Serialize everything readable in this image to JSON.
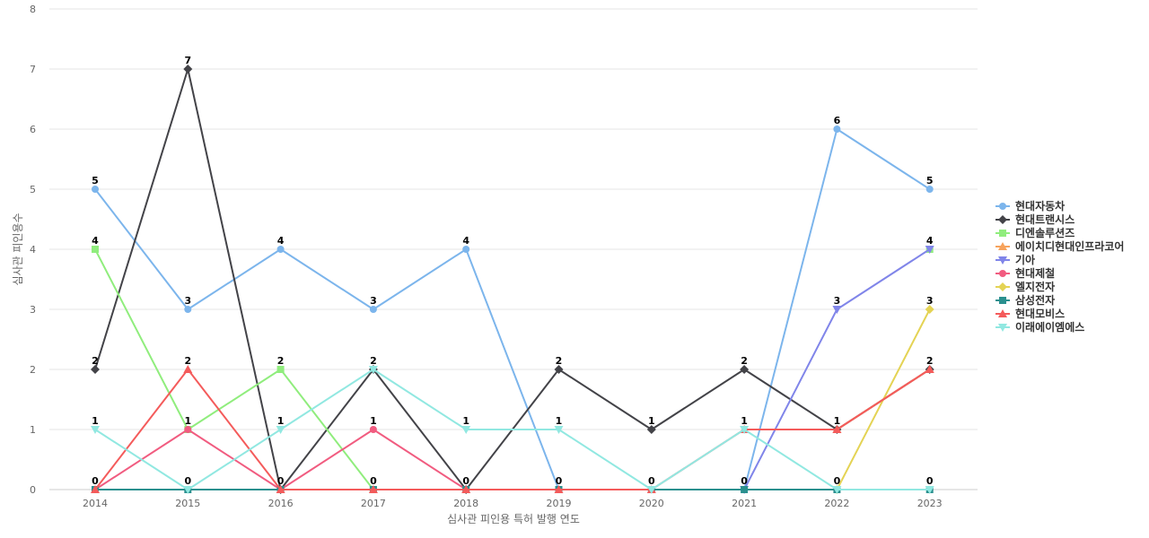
{
  "chart_data": {
    "type": "line",
    "title": "",
    "xlabel": "심사관 피인용 특허 발행 연도",
    "ylabel": "심사관 피인용수",
    "ylim": [
      0,
      8
    ],
    "yticks": [
      0,
      1,
      2,
      3,
      4,
      5,
      6,
      7,
      8
    ],
    "grid": true,
    "legend_position": "right",
    "categories": [
      "2014",
      "2015",
      "2016",
      "2017",
      "2018",
      "2019",
      "2020",
      "2021",
      "2022",
      "2023"
    ],
    "series": [
      {
        "name": "현대자동차",
        "color": "#7cb5ec",
        "marker": "circle",
        "values": [
          5,
          3,
          4,
          3,
          4,
          0,
          null,
          0,
          6,
          5
        ]
      },
      {
        "name": "현대트랜시스",
        "color": "#434348",
        "marker": "diamond",
        "values": [
          2,
          7,
          0,
          2,
          0,
          2,
          1,
          2,
          1,
          2
        ]
      },
      {
        "name": "디엔솔루션즈",
        "color": "#90ed7d",
        "marker": "square",
        "values": [
          4,
          1,
          2,
          0,
          null,
          null,
          null,
          null,
          null,
          4
        ]
      },
      {
        "name": "에이치디현대인프라코어",
        "color": "#f7a35c",
        "marker": "triangle",
        "values": [
          null,
          null,
          null,
          null,
          null,
          null,
          null,
          1,
          1,
          2
        ]
      },
      {
        "name": "기아",
        "color": "#8085e9",
        "marker": "triangle-down",
        "values": [
          null,
          null,
          null,
          null,
          null,
          null,
          null,
          0,
          3,
          4
        ]
      },
      {
        "name": "현대제철",
        "color": "#f15c80",
        "marker": "circle",
        "values": [
          0,
          1,
          0,
          1,
          0,
          0,
          0,
          null,
          null,
          null
        ]
      },
      {
        "name": "엘지전자",
        "color": "#e4d354",
        "marker": "diamond",
        "values": [
          null,
          null,
          null,
          null,
          null,
          null,
          null,
          null,
          0,
          3
        ]
      },
      {
        "name": "삼성전자",
        "color": "#2b908f",
        "marker": "square",
        "values": [
          0,
          0,
          0,
          0,
          0,
          0,
          0,
          0,
          0,
          0
        ]
      },
      {
        "name": "현대모비스",
        "color": "#f45b5b",
        "marker": "triangle",
        "values": [
          0,
          2,
          0,
          0,
          0,
          0,
          0,
          1,
          1,
          2
        ]
      },
      {
        "name": "이래에이엠에스",
        "color": "#91e8e1",
        "marker": "triangle-down",
        "values": [
          1,
          0,
          1,
          2,
          1,
          1,
          0,
          1,
          0,
          0
        ]
      }
    ],
    "data_labels": [
      {
        "category": "2014",
        "labels": [
          "5",
          "4",
          "2",
          "1",
          "0"
        ]
      },
      {
        "category": "2015",
        "labels": [
          "7",
          "3",
          "2",
          "1",
          "0"
        ]
      },
      {
        "category": "2016",
        "labels": [
          "4",
          "2",
          "1",
          "0"
        ]
      },
      {
        "category": "2017",
        "labels": [
          "3",
          "2",
          "1",
          "0"
        ]
      },
      {
        "category": "2018",
        "labels": [
          "4",
          "1",
          "0"
        ]
      },
      {
        "category": "2019",
        "labels": [
          "2",
          "1",
          "0"
        ]
      },
      {
        "category": "2020",
        "labels": [
          "1",
          "0"
        ]
      },
      {
        "category": "2021",
        "labels": [
          "2",
          "1",
          "0"
        ]
      },
      {
        "category": "2022",
        "labels": [
          "6",
          "3",
          "1",
          "0"
        ]
      },
      {
        "category": "2023",
        "labels": [
          "5",
          "4",
          "3",
          "2",
          "0"
        ]
      }
    ]
  }
}
